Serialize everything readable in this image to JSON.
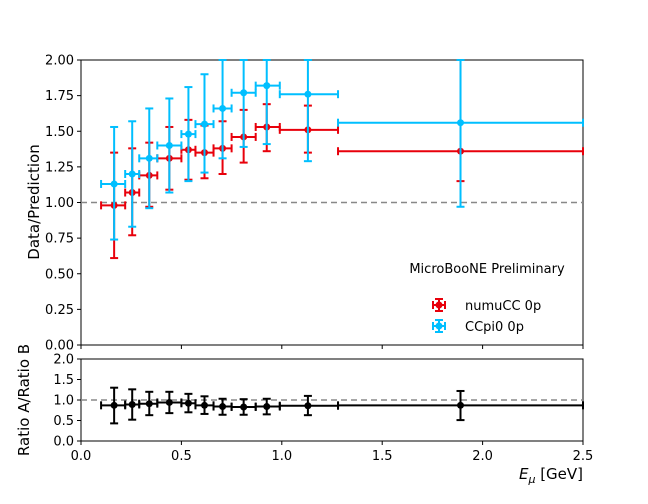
{
  "chart_data": [
    {
      "type": "scatter",
      "panel": "top",
      "ylabel": "Data/Prediction",
      "ylim": [
        0.0,
        2.0
      ],
      "xlim": [
        0.0,
        2.5
      ],
      "yticks": [
        "0.00",
        "0.25",
        "0.50",
        "0.75",
        "1.00",
        "1.25",
        "1.50",
        "1.75",
        "2.00"
      ],
      "reference_line": 1.0,
      "annotation": "MicroBooNE Preliminary",
      "legend_position": "lower-right",
      "series": [
        {
          "name": "numuCC 0p",
          "color": "#e8000b",
          "points": [
            {
              "x": 0.165,
              "xlo": 0.1,
              "xhi": 0.22,
              "y": 0.98,
              "ylo": 0.61,
              "yhi": 1.35
            },
            {
              "x": 0.255,
              "xlo": 0.22,
              "xhi": 0.29,
              "y": 1.07,
              "ylo": 0.77,
              "yhi": 1.38
            },
            {
              "x": 0.34,
              "xlo": 0.29,
              "xhi": 0.38,
              "y": 1.19,
              "ylo": 0.97,
              "yhi": 1.42
            },
            {
              "x": 0.44,
              "xlo": 0.38,
              "xhi": 0.5,
              "y": 1.31,
              "ylo": 1.09,
              "yhi": 1.53
            },
            {
              "x": 0.535,
              "xlo": 0.5,
              "xhi": 0.57,
              "y": 1.37,
              "ylo": 1.16,
              "yhi": 1.58
            },
            {
              "x": 0.615,
              "xlo": 0.57,
              "xhi": 0.66,
              "y": 1.35,
              "ylo": 1.17,
              "yhi": 1.54
            },
            {
              "x": 0.705,
              "xlo": 0.66,
              "xhi": 0.75,
              "y": 1.38,
              "ylo": 1.2,
              "yhi": 1.57
            },
            {
              "x": 0.81,
              "xlo": 0.75,
              "xhi": 0.87,
              "y": 1.46,
              "ylo": 1.28,
              "yhi": 1.65
            },
            {
              "x": 0.925,
              "xlo": 0.87,
              "xhi": 0.99,
              "y": 1.53,
              "ylo": 1.36,
              "yhi": 1.69
            },
            {
              "x": 1.13,
              "xlo": 0.99,
              "xhi": 1.28,
              "y": 1.51,
              "ylo": 1.35,
              "yhi": 1.68
            },
            {
              "x": 1.89,
              "xlo": 1.28,
              "xhi": 2.5,
              "y": 1.36,
              "ylo": 1.15,
              "yhi": 2.0
            }
          ]
        },
        {
          "name": "CCpi0 0p",
          "color": "#00bfff",
          "points": [
            {
              "x": 0.165,
              "xlo": 0.1,
              "xhi": 0.22,
              "y": 1.13,
              "ylo": 0.74,
              "yhi": 1.53
            },
            {
              "x": 0.255,
              "xlo": 0.22,
              "xhi": 0.29,
              "y": 1.2,
              "ylo": 0.83,
              "yhi": 1.57
            },
            {
              "x": 0.34,
              "xlo": 0.29,
              "xhi": 0.38,
              "y": 1.31,
              "ylo": 0.96,
              "yhi": 1.66
            },
            {
              "x": 0.44,
              "xlo": 0.38,
              "xhi": 0.5,
              "y": 1.4,
              "ylo": 1.07,
              "yhi": 1.73
            },
            {
              "x": 0.535,
              "xlo": 0.5,
              "xhi": 0.57,
              "y": 1.48,
              "ylo": 1.15,
              "yhi": 1.81
            },
            {
              "x": 0.615,
              "xlo": 0.57,
              "xhi": 0.66,
              "y": 1.55,
              "ylo": 1.21,
              "yhi": 1.9
            },
            {
              "x": 0.705,
              "xlo": 0.66,
              "xhi": 0.75,
              "y": 1.66,
              "ylo": 1.31,
              "yhi": 2.0
            },
            {
              "x": 0.81,
              "xlo": 0.75,
              "xhi": 0.87,
              "y": 1.77,
              "ylo": 1.39,
              "yhi": 2.0
            },
            {
              "x": 0.925,
              "xlo": 0.87,
              "xhi": 0.99,
              "y": 1.82,
              "ylo": 1.41,
              "yhi": 2.0
            },
            {
              "x": 1.13,
              "xlo": 0.99,
              "xhi": 1.28,
              "y": 1.76,
              "ylo": 1.29,
              "yhi": 2.0
            },
            {
              "x": 1.89,
              "xlo": 1.28,
              "xhi": 2.5,
              "y": 1.56,
              "ylo": 0.97,
              "yhi": 2.0
            }
          ]
        }
      ]
    },
    {
      "type": "scatter",
      "panel": "bottom",
      "xlabel": "E_μ [GeV]",
      "ylabel": "Ratio A/Ratio B",
      "ylim": [
        0.0,
        2.0
      ],
      "xlim": [
        0.0,
        2.5
      ],
      "yticks": [
        "0.0",
        "0.5",
        "1.0",
        "1.5",
        "2.0"
      ],
      "xticks": [
        "0.0",
        "0.5",
        "1.0",
        "1.5",
        "2.0",
        "2.5"
      ],
      "reference_line": 1.0,
      "series": [
        {
          "name": "",
          "color": "#000000",
          "points": [
            {
              "x": 0.165,
              "xlo": 0.1,
              "xhi": 0.22,
              "y": 0.87,
              "ylo": 0.43,
              "yhi": 1.3
            },
            {
              "x": 0.255,
              "xlo": 0.22,
              "xhi": 0.29,
              "y": 0.89,
              "ylo": 0.52,
              "yhi": 1.26
            },
            {
              "x": 0.34,
              "xlo": 0.29,
              "xhi": 0.38,
              "y": 0.91,
              "ylo": 0.63,
              "yhi": 1.2
            },
            {
              "x": 0.44,
              "xlo": 0.38,
              "xhi": 0.5,
              "y": 0.94,
              "ylo": 0.68,
              "yhi": 1.2
            },
            {
              "x": 0.535,
              "xlo": 0.5,
              "xhi": 0.57,
              "y": 0.92,
              "ylo": 0.7,
              "yhi": 1.15
            },
            {
              "x": 0.615,
              "xlo": 0.57,
              "xhi": 0.66,
              "y": 0.87,
              "ylo": 0.66,
              "yhi": 1.09
            },
            {
              "x": 0.705,
              "xlo": 0.66,
              "xhi": 0.75,
              "y": 0.84,
              "ylo": 0.64,
              "yhi": 1.03
            },
            {
              "x": 0.81,
              "xlo": 0.75,
              "xhi": 0.87,
              "y": 0.83,
              "ylo": 0.64,
              "yhi": 1.02
            },
            {
              "x": 0.925,
              "xlo": 0.87,
              "xhi": 0.99,
              "y": 0.84,
              "ylo": 0.65,
              "yhi": 1.03
            },
            {
              "x": 1.13,
              "xlo": 0.99,
              "xhi": 1.28,
              "y": 0.86,
              "ylo": 0.63,
              "yhi": 1.1
            },
            {
              "x": 1.89,
              "xlo": 1.28,
              "xhi": 2.5,
              "y": 0.87,
              "ylo": 0.51,
              "yhi": 1.22
            }
          ]
        }
      ]
    }
  ]
}
